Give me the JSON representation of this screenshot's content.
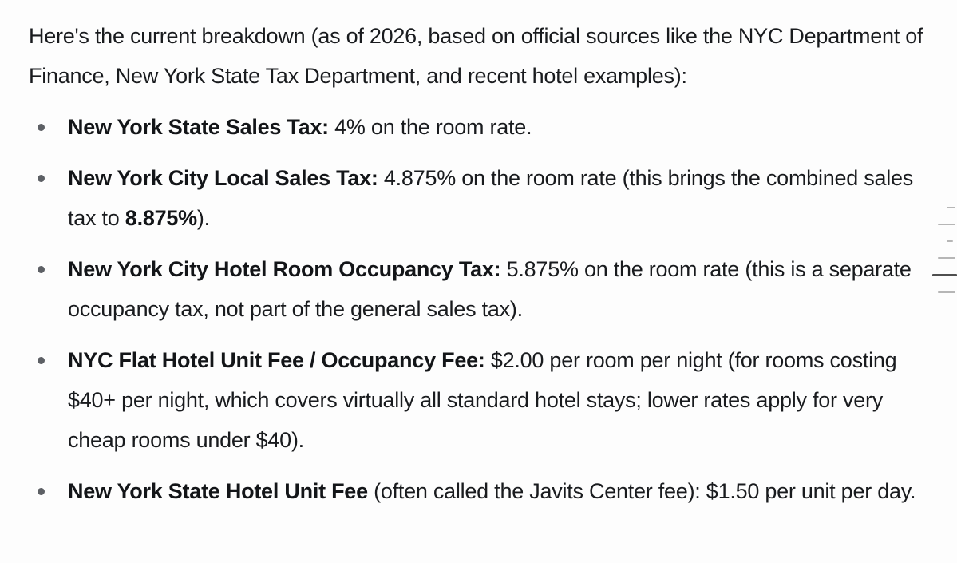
{
  "intro": {
    "text": "Here's the current breakdown (as of 2026, based on official sources like the NYC Department of Finance, New York State Tax Department, and recent hotel examples):"
  },
  "bullets": [
    {
      "segments": [
        {
          "text": "New York State Sales Tax:",
          "bold": true
        },
        {
          "text": " 4% on the room rate.",
          "bold": false
        }
      ]
    },
    {
      "segments": [
        {
          "text": "New York City Local Sales Tax:",
          "bold": true
        },
        {
          "text": " 4.875% on the room rate (this brings the combined sales tax to ",
          "bold": false
        },
        {
          "text": "8.875%",
          "bold": true
        },
        {
          "text": ").",
          "bold": false
        }
      ]
    },
    {
      "segments": [
        {
          "text": "New York City Hotel Room Occupancy Tax:",
          "bold": true
        },
        {
          "text": " 5.875% on the room rate (this is a separate occupancy tax, not part of the general sales tax).",
          "bold": false
        }
      ]
    },
    {
      "segments": [
        {
          "text": "NYC Flat Hotel Unit Fee / Occupancy Fee:",
          "bold": true
        },
        {
          "text": " $2.00 per room per night (for rooms costing $40+ per night, which covers virtually all standard hotel stays; lower rates apply for very cheap rooms under $40).",
          "bold": false
        }
      ]
    },
    {
      "segments": [
        {
          "text": "New York State Hotel Unit Fee",
          "bold": true
        },
        {
          "text": " (often called the Javits Center fee): $1.50 per unit per day.",
          "bold": false
        }
      ]
    }
  ],
  "minimap": {
    "inactive_color": "#b6b6b6",
    "active_color": "#4f4f4f",
    "markers": [
      {
        "size": "sm",
        "active": false
      },
      {
        "size": "md",
        "active": false
      },
      {
        "size": "xs",
        "active": false
      },
      {
        "size": "md",
        "active": false
      },
      {
        "size": "lg",
        "active": true
      },
      {
        "size": "md",
        "active": false
      }
    ]
  }
}
